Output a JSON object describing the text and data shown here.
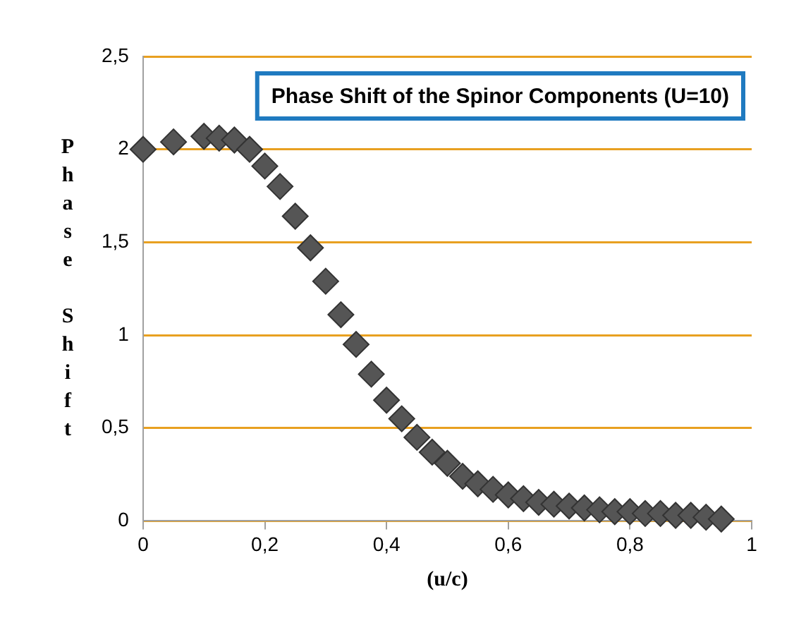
{
  "chart_data": {
    "type": "scatter",
    "title": "Phase Shift of the Spinor Components (U=10)",
    "xlabel": "(u/c)",
    "ylabel": "Phase Shift",
    "x": [
      0,
      0.05,
      0.1,
      0.125,
      0.15,
      0.175,
      0.2,
      0.225,
      0.25,
      0.275,
      0.3,
      0.325,
      0.35,
      0.375,
      0.4,
      0.425,
      0.45,
      0.475,
      0.5,
      0.525,
      0.55,
      0.575,
      0.6,
      0.625,
      0.65,
      0.675,
      0.7,
      0.725,
      0.75,
      0.775,
      0.8,
      0.825,
      0.85,
      0.875,
      0.9,
      0.925,
      0.95
    ],
    "series": [
      {
        "color": "#555555",
        "values": [
          2.0,
          2.04,
          2.07,
          2.06,
          2.05,
          2.0,
          1.91,
          1.8,
          1.64,
          1.47,
          1.29,
          1.11,
          0.95,
          0.79,
          0.65,
          0.55,
          0.45,
          0.37,
          0.31,
          0.24,
          0.2,
          0.17,
          0.14,
          0.12,
          0.1,
          0.09,
          0.08,
          0.07,
          0.06,
          0.05,
          0.05,
          0.04,
          0.04,
          0.03,
          0.03,
          0.02,
          0.01
        ]
      }
    ],
    "xlim": [
      0,
      1
    ],
    "xticks": [
      0,
      {
        "value": 0.2,
        "label": "0,2"
      },
      {
        "value": 0.4,
        "label": "0,4"
      },
      {
        "value": 0.6,
        "label": "0,6"
      },
      {
        "value": 0.8,
        "label": "0,8"
      },
      1
    ],
    "ylim": [
      0,
      2.5
    ],
    "yticks": [
      0,
      {
        "value": 0.5,
        "label": "0,5"
      },
      1,
      {
        "value": 1.5,
        "label": "1,5"
      },
      2,
      {
        "value": 2.5,
        "label": "2,5"
      }
    ],
    "grid": "y",
    "marker": "diamond",
    "legend": false
  }
}
